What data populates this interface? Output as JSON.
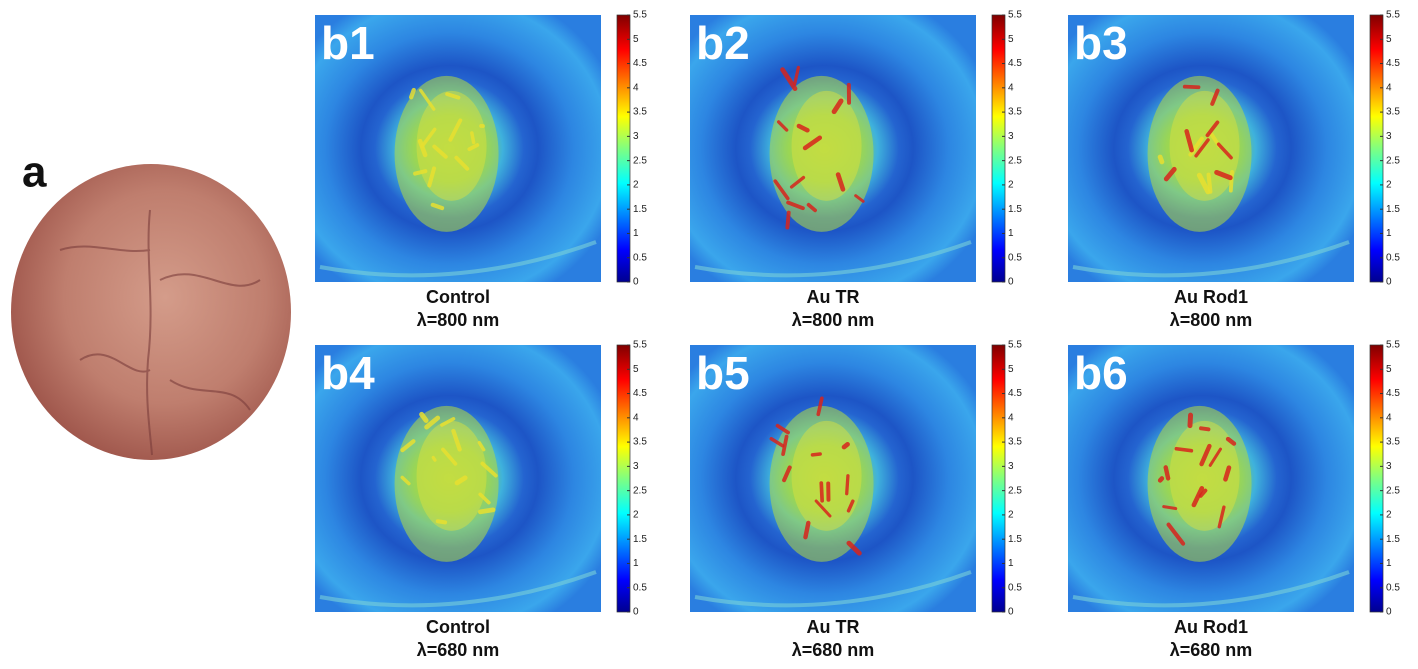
{
  "panel_a": {
    "label": "a"
  },
  "panels": [
    {
      "label": "b1",
      "caption": "Control",
      "wavelength": "λ=800 nm"
    },
    {
      "label": "b2",
      "caption": "Au TR",
      "wavelength": "λ=800 nm"
    },
    {
      "label": "b3",
      "caption": "Au Rod1",
      "wavelength": "λ=800 nm"
    },
    {
      "label": "b4",
      "caption": "Control",
      "wavelength": "λ=680 nm"
    },
    {
      "label": "b5",
      "caption": "Au TR",
      "wavelength": "λ=680 nm"
    },
    {
      "label": "b6",
      "caption": "Au Rod1",
      "wavelength": "λ=680 nm"
    }
  ],
  "colorbar": {
    "ticks": [
      0,
      0.5,
      1,
      1.5,
      2,
      2.5,
      3,
      3.5,
      4,
      4.5,
      5,
      5.5
    ]
  }
}
